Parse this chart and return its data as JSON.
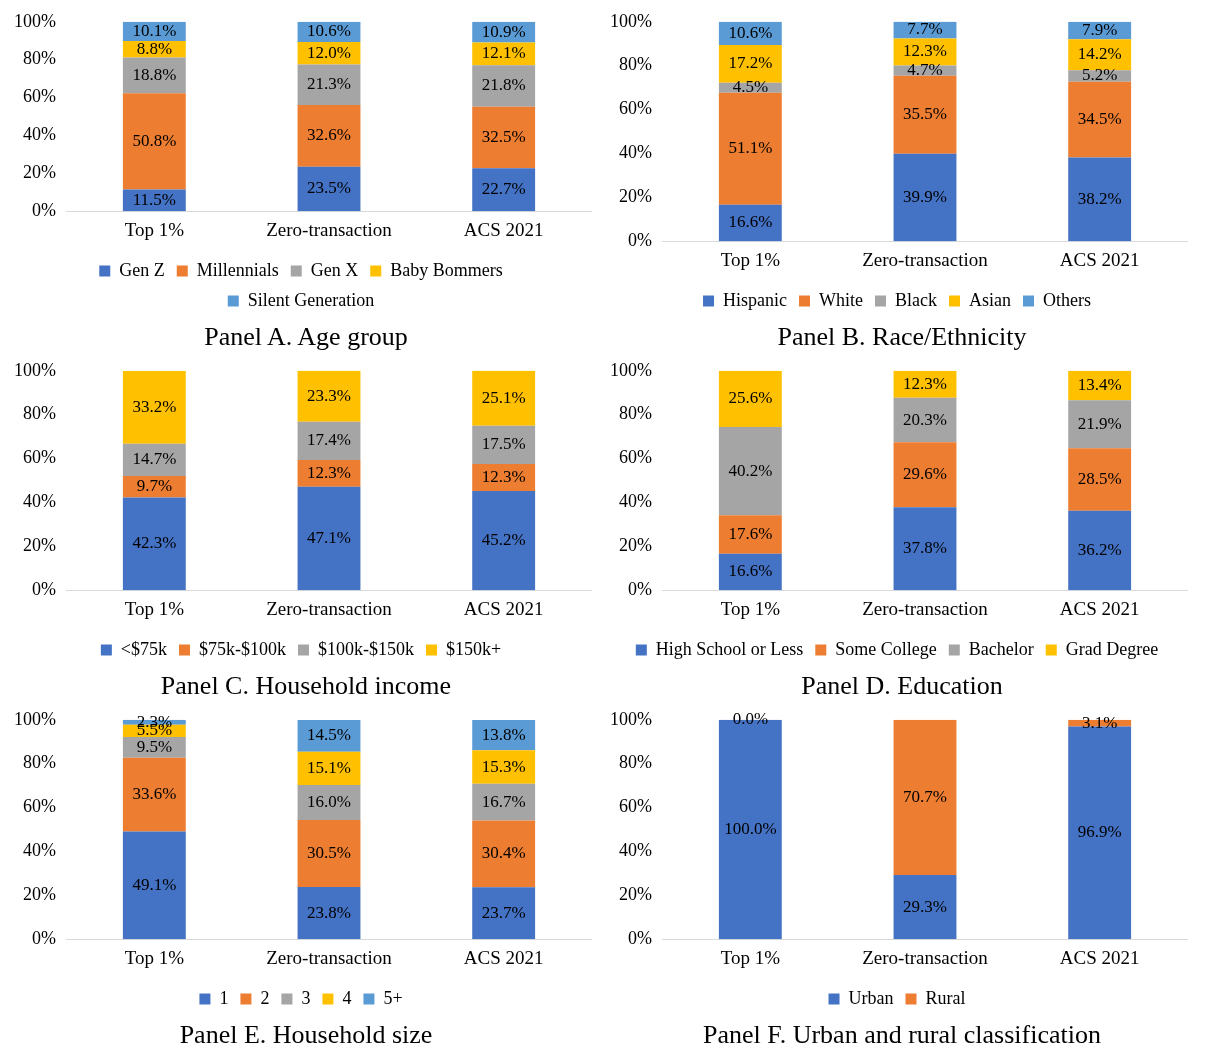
{
  "chart_data": [
    {
      "type": "bar",
      "title": "Panel A. Age group",
      "stacked": true,
      "legend": "bottom",
      "grid": false,
      "categories": [
        "Top 1%",
        "Zero-transaction",
        "ACS 2021"
      ],
      "ylim": [
        0,
        100
      ],
      "yticks": [
        {
          "value": 0,
          "label": "0%"
        },
        {
          "value": 20,
          "label": "20%"
        },
        {
          "value": 40,
          "label": "40%"
        },
        {
          "value": 60,
          "label": "60%"
        },
        {
          "value": 80,
          "label": "80%"
        },
        {
          "value": 100,
          "label": "100%"
        }
      ],
      "series": [
        {
          "name": "Gen Z",
          "color": "#4472c4",
          "values": [
            11.5,
            23.5,
            22.7
          ],
          "value_labels": [
            "11.5%",
            "23.5%",
            "22.7%"
          ]
        },
        {
          "name": "Millennials",
          "color": "#ed7d31",
          "values": [
            50.8,
            32.6,
            32.5
          ],
          "value_labels": [
            "50.8%",
            "32.6%",
            "32.5%"
          ]
        },
        {
          "name": "Gen X",
          "color": "#a5a5a5",
          "values": [
            18.8,
            21.3,
            21.8
          ],
          "value_labels": [
            "18.8%",
            "21.3%",
            "21.8%"
          ]
        },
        {
          "name": "Baby Bommers",
          "color": "#ffc000",
          "values": [
            8.8,
            12.0,
            12.1
          ],
          "value_labels": [
            "8.8%",
            "12.0%",
            "12.1%"
          ]
        },
        {
          "name": "Silent Generation",
          "color": "#5b9bd5",
          "values": [
            10.1,
            10.6,
            10.9
          ],
          "value_labels": [
            "10.1%",
            "10.6%",
            "10.9%"
          ]
        }
      ]
    },
    {
      "type": "bar",
      "title": "Panel B. Race/Ethnicity",
      "stacked": true,
      "legend": "bottom",
      "grid": false,
      "categories": [
        "Top 1%",
        "Zero-transaction",
        "ACS 2021"
      ],
      "ylim": [
        0,
        100
      ],
      "yticks": [
        {
          "value": 0,
          "label": "0%"
        },
        {
          "value": 20,
          "label": "20%"
        },
        {
          "value": 40,
          "label": "40%"
        },
        {
          "value": 60,
          "label": "60%"
        },
        {
          "value": 80,
          "label": "80%"
        },
        {
          "value": 100,
          "label": "100%"
        }
      ],
      "series": [
        {
          "name": "Hispanic",
          "color": "#4472c4",
          "values": [
            16.6,
            39.9,
            38.2
          ],
          "value_labels": [
            "16.6%",
            "39.9%",
            "38.2%"
          ]
        },
        {
          "name": "White",
          "color": "#ed7d31",
          "values": [
            51.1,
            35.5,
            34.5
          ],
          "value_labels": [
            "51.1%",
            "35.5%",
            "34.5%"
          ]
        },
        {
          "name": "Black",
          "color": "#a5a5a5",
          "values": [
            4.5,
            4.7,
            5.2
          ],
          "value_labels": [
            "4.5%",
            "4.7%",
            "5.2%"
          ]
        },
        {
          "name": "Asian",
          "color": "#ffc000",
          "values": [
            17.2,
            12.3,
            14.2
          ],
          "value_labels": [
            "17.2%",
            "12.3%",
            "14.2%"
          ]
        },
        {
          "name": "Others",
          "color": "#5b9bd5",
          "values": [
            10.6,
            7.7,
            7.9
          ],
          "value_labels": [
            "10.6%",
            "7.7%",
            "7.9%"
          ]
        }
      ]
    },
    {
      "type": "bar",
      "title": "Panel C. Household income",
      "stacked": true,
      "legend": "bottom",
      "grid": false,
      "categories": [
        "Top 1%",
        "Zero-transaction",
        "ACS 2021"
      ],
      "ylim": [
        0,
        100
      ],
      "yticks": [
        {
          "value": 0,
          "label": "0%"
        },
        {
          "value": 20,
          "label": "20%"
        },
        {
          "value": 40,
          "label": "40%"
        },
        {
          "value": 60,
          "label": "60%"
        },
        {
          "value": 80,
          "label": "80%"
        },
        {
          "value": 100,
          "label": "100%"
        }
      ],
      "series": [
        {
          "name": "<$75k",
          "color": "#4472c4",
          "values": [
            42.3,
            47.1,
            45.2
          ],
          "value_labels": [
            "42.3%",
            "47.1%",
            "45.2%"
          ]
        },
        {
          "name": "$75k-$100k",
          "color": "#ed7d31",
          "values": [
            9.7,
            12.3,
            12.3
          ],
          "value_labels": [
            "9.7%",
            "12.3%",
            "12.3%"
          ]
        },
        {
          "name": "$100k-$150k",
          "color": "#a5a5a5",
          "values": [
            14.7,
            17.4,
            17.5
          ],
          "value_labels": [
            "14.7%",
            "17.4%",
            "17.5%"
          ]
        },
        {
          "name": "$150k+",
          "color": "#ffc000",
          "values": [
            33.2,
            23.3,
            25.1
          ],
          "value_labels": [
            "33.2%",
            "23.3%",
            "25.1%"
          ]
        }
      ]
    },
    {
      "type": "bar",
      "title": "Panel D. Education",
      "stacked": true,
      "legend": "bottom",
      "grid": false,
      "categories": [
        "Top 1%",
        "Zero-transaction",
        "ACS 2021"
      ],
      "ylim": [
        0,
        100
      ],
      "yticks": [
        {
          "value": 0,
          "label": "0%"
        },
        {
          "value": 20,
          "label": "20%"
        },
        {
          "value": 40,
          "label": "40%"
        },
        {
          "value": 60,
          "label": "60%"
        },
        {
          "value": 80,
          "label": "80%"
        },
        {
          "value": 100,
          "label": "100%"
        }
      ],
      "series": [
        {
          "name": "High School or Less",
          "color": "#4472c4",
          "values": [
            16.6,
            37.8,
            36.2
          ],
          "value_labels": [
            "16.6%",
            "37.8%",
            "36.2%"
          ]
        },
        {
          "name": "Some College",
          "color": "#ed7d31",
          "values": [
            17.6,
            29.6,
            28.5
          ],
          "value_labels": [
            "17.6%",
            "29.6%",
            "28.5%"
          ]
        },
        {
          "name": "Bachelor",
          "color": "#a5a5a5",
          "values": [
            40.2,
            20.3,
            21.9
          ],
          "value_labels": [
            "40.2%",
            "20.3%",
            "21.9%"
          ]
        },
        {
          "name": "Grad Degree",
          "color": "#ffc000",
          "values": [
            25.6,
            12.3,
            13.4
          ],
          "value_labels": [
            "25.6%",
            "12.3%",
            "13.4%"
          ]
        }
      ]
    },
    {
      "type": "bar",
      "title": "Panel E. Household size",
      "stacked": true,
      "legend": "bottom",
      "grid": false,
      "categories": [
        "Top 1%",
        "Zero-transaction",
        "ACS 2021"
      ],
      "ylim": [
        0,
        100
      ],
      "yticks": [
        {
          "value": 0,
          "label": "0%"
        },
        {
          "value": 20,
          "label": "20%"
        },
        {
          "value": 40,
          "label": "40%"
        },
        {
          "value": 60,
          "label": "60%"
        },
        {
          "value": 80,
          "label": "80%"
        },
        {
          "value": 100,
          "label": "100%"
        }
      ],
      "series": [
        {
          "name": "1",
          "color": "#4472c4",
          "values": [
            49.1,
            23.8,
            23.7
          ],
          "value_labels": [
            "49.1%",
            "23.8%",
            "23.7%"
          ]
        },
        {
          "name": "2",
          "color": "#ed7d31",
          "values": [
            33.6,
            30.5,
            30.4
          ],
          "value_labels": [
            "33.6%",
            "30.5%",
            "30.4%"
          ]
        },
        {
          "name": "3",
          "color": "#a5a5a5",
          "values": [
            9.5,
            16.0,
            16.7
          ],
          "value_labels": [
            "9.5%",
            "16.0%",
            "16.7%"
          ]
        },
        {
          "name": "4",
          "color": "#ffc000",
          "values": [
            5.5,
            15.1,
            15.3
          ],
          "value_labels": [
            "5.5%",
            "15.1%",
            "15.3%"
          ]
        },
        {
          "name": "5+",
          "color": "#5b9bd5",
          "values": [
            2.3,
            14.5,
            13.8
          ],
          "value_labels": [
            "2.3%",
            "14.5%",
            "13.8%"
          ]
        }
      ]
    },
    {
      "type": "bar",
      "title": "Panel F. Urban and rural classification",
      "stacked": true,
      "legend": "bottom",
      "grid": false,
      "categories": [
        "Top 1%",
        "Zero-transaction",
        "ACS 2021"
      ],
      "ylim": [
        0,
        100
      ],
      "yticks": [
        {
          "value": 0,
          "label": "0%"
        },
        {
          "value": 20,
          "label": "20%"
        },
        {
          "value": 40,
          "label": "40%"
        },
        {
          "value": 60,
          "label": "60%"
        },
        {
          "value": 80,
          "label": "80%"
        },
        {
          "value": 100,
          "label": "100%"
        }
      ],
      "series": [
        {
          "name": "Urban",
          "color": "#4472c4",
          "values": [
            100.0,
            29.3,
            96.9
          ],
          "value_labels": [
            "100.0%",
            "29.3%",
            "96.9%"
          ]
        },
        {
          "name": "Rural",
          "color": "#ed7d31",
          "values": [
            0.0,
            70.7,
            3.1
          ],
          "value_labels": [
            "0.0%",
            "70.7%",
            "3.1%"
          ]
        }
      ]
    }
  ]
}
